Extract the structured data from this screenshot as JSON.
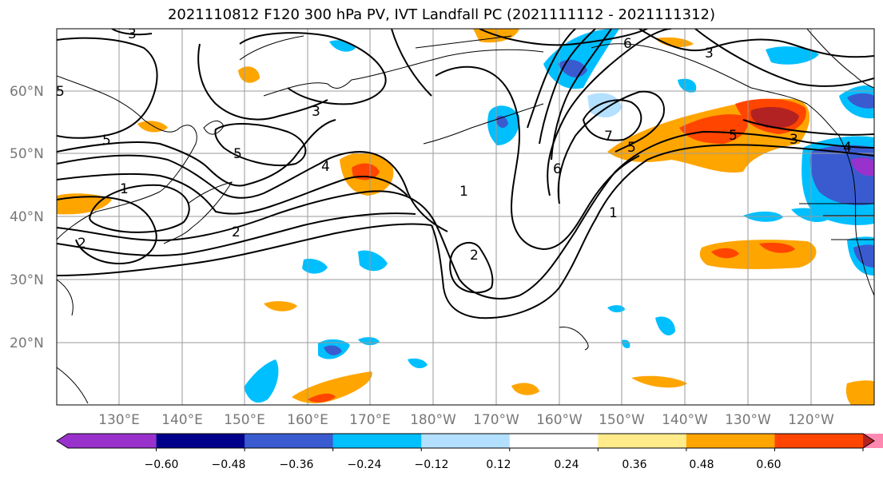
{
  "title": "2021110812 F120 300 hPa PV, IVT Landfall PC (2021111112 - 2021111312)",
  "lat_labels": [
    "60°N",
    "50°N",
    "40°N",
    "30°N",
    "20°N"
  ],
  "lon_labels": [
    "130°E",
    "140°E",
    "150°E",
    "160°E",
    "170°E",
    "180°W",
    "170°W",
    "160°W",
    "150°W",
    "140°W",
    "130°W",
    "120°W"
  ],
  "colorbar": {
    "ticks": [
      "−0.60",
      "−0.48",
      "−0.36",
      "−0.24",
      "−0.12",
      "0.12",
      "0.24",
      "0.36",
      "0.48",
      "0.60"
    ],
    "colors": [
      "#9932CC",
      "#00008B",
      "#3A5BD0",
      "#00BFFF",
      "#B3E0FF",
      "#FFFFFF",
      "#FFEB8A",
      "#FFA500",
      "#FF4500",
      "#B22222",
      "#FF88B0"
    ]
  },
  "contour_labels": [
    "5",
    "3",
    "5",
    "5",
    "3",
    "4",
    "1",
    "2",
    "2",
    "1",
    "2",
    "6",
    "6",
    "7",
    "5",
    "1",
    "3",
    "5",
    "4",
    "3"
  ]
}
